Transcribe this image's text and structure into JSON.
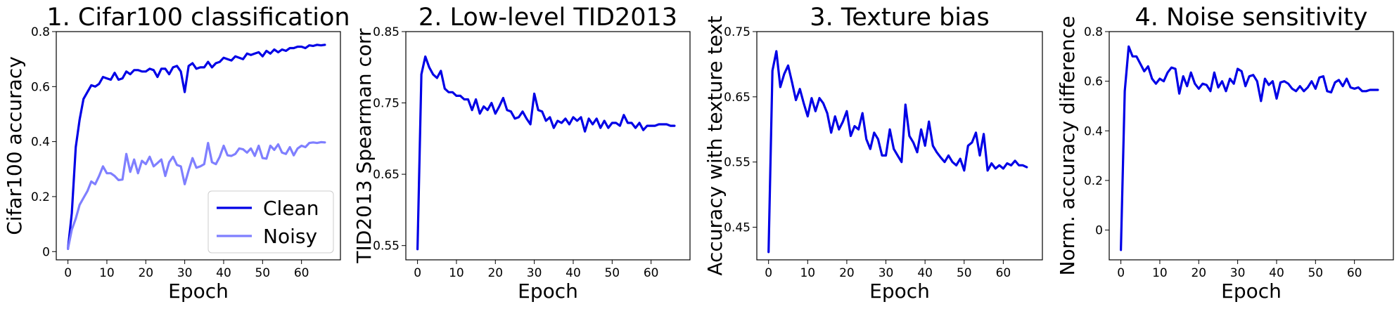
{
  "chart_data": [
    {
      "type": "line",
      "title": "1. Cifar100 classification",
      "xlabel": "Epoch",
      "ylabel": "Cifar100 accuracy",
      "xlim": [
        -3,
        70
      ],
      "ylim": [
        -0.03,
        0.8
      ],
      "xticks": [
        0,
        10,
        20,
        30,
        40,
        50,
        60
      ],
      "yticks": [
        0,
        0.2,
        0.4,
        0.6,
        0.8
      ],
      "ytick_labels": [
        "0",
        "0.2",
        "0.4",
        "0.6",
        "0.8"
      ],
      "legend": "bottom-right",
      "series": [
        {
          "name": "Clean",
          "color": "#0000e6",
          "x": [
            0,
            1,
            2,
            3,
            4,
            5,
            6,
            7,
            8,
            9,
            10,
            11,
            12,
            13,
            14,
            15,
            16,
            17,
            18,
            19,
            20,
            21,
            22,
            23,
            24,
            25,
            26,
            27,
            28,
            29,
            30,
            31,
            32,
            33,
            34,
            35,
            36,
            37,
            38,
            39,
            40,
            41,
            42,
            43,
            44,
            45,
            46,
            47,
            48,
            49,
            50,
            51,
            52,
            53,
            54,
            55,
            56,
            57,
            58,
            59,
            60,
            61,
            62,
            63,
            64,
            65,
            66
          ],
          "values": [
            0.01,
            0.14,
            0.38,
            0.48,
            0.555,
            0.58,
            0.605,
            0.6,
            0.61,
            0.635,
            0.63,
            0.625,
            0.65,
            0.625,
            0.63,
            0.655,
            0.645,
            0.66,
            0.66,
            0.655,
            0.655,
            0.665,
            0.66,
            0.635,
            0.665,
            0.665,
            0.645,
            0.67,
            0.675,
            0.655,
            0.58,
            0.675,
            0.685,
            0.665,
            0.67,
            0.67,
            0.69,
            0.67,
            0.685,
            0.69,
            0.705,
            0.7,
            0.695,
            0.71,
            0.705,
            0.7,
            0.72,
            0.715,
            0.72,
            0.725,
            0.71,
            0.73,
            0.72,
            0.735,
            0.725,
            0.735,
            0.73,
            0.74,
            0.74,
            0.745,
            0.745,
            0.74,
            0.75,
            0.748,
            0.752,
            0.75,
            0.752
          ]
        },
        {
          "name": "Noisy",
          "color": "#7f7fff",
          "x": [
            0,
            1,
            2,
            3,
            4,
            5,
            6,
            7,
            8,
            9,
            10,
            11,
            12,
            13,
            14,
            15,
            16,
            17,
            18,
            19,
            20,
            21,
            22,
            23,
            24,
            25,
            26,
            27,
            28,
            29,
            30,
            31,
            32,
            33,
            34,
            35,
            36,
            37,
            38,
            39,
            40,
            41,
            42,
            43,
            44,
            45,
            46,
            47,
            48,
            49,
            50,
            51,
            52,
            53,
            54,
            55,
            56,
            57,
            58,
            59,
            60,
            61,
            62,
            63,
            64,
            65,
            66
          ],
          "values": [
            0.01,
            0.08,
            0.12,
            0.17,
            0.195,
            0.22,
            0.255,
            0.245,
            0.275,
            0.31,
            0.285,
            0.285,
            0.275,
            0.26,
            0.262,
            0.355,
            0.29,
            0.335,
            0.285,
            0.33,
            0.318,
            0.345,
            0.31,
            0.322,
            0.335,
            0.275,
            0.325,
            0.345,
            0.315,
            0.31,
            0.245,
            0.295,
            0.34,
            0.305,
            0.31,
            0.318,
            0.395,
            0.325,
            0.318,
            0.345,
            0.385,
            0.35,
            0.348,
            0.355,
            0.375,
            0.372,
            0.36,
            0.375,
            0.348,
            0.385,
            0.34,
            0.338,
            0.385,
            0.37,
            0.39,
            0.36,
            0.355,
            0.38,
            0.35,
            0.375,
            0.385,
            0.38,
            0.395,
            0.397,
            0.395,
            0.398,
            0.397
          ]
        }
      ]
    },
    {
      "type": "line",
      "title": "2. Low-level TID2013",
      "xlabel": "Epoch",
      "ylabel": "TID2013 Spearman corr",
      "xlim": [
        -3,
        70
      ],
      "ylim": [
        0.53,
        0.85
      ],
      "xticks": [
        0,
        10,
        20,
        30,
        40,
        50,
        60
      ],
      "yticks": [
        0.55,
        0.65,
        0.75,
        0.85
      ],
      "ytick_labels": [
        "0.55",
        "0.65",
        "0.75",
        "0.85"
      ],
      "series": [
        {
          "color": "#0000e6",
          "x": [
            0,
            1,
            2,
            3,
            4,
            5,
            6,
            7,
            8,
            9,
            10,
            11,
            12,
            13,
            14,
            15,
            16,
            17,
            18,
            19,
            20,
            21,
            22,
            23,
            24,
            25,
            26,
            27,
            28,
            29,
            30,
            31,
            32,
            33,
            34,
            35,
            36,
            37,
            38,
            39,
            40,
            41,
            42,
            43,
            44,
            45,
            46,
            47,
            48,
            49,
            50,
            51,
            52,
            53,
            54,
            55,
            56,
            57,
            58,
            59,
            60,
            61,
            62,
            63,
            64,
            65,
            66
          ],
          "values": [
            0.545,
            0.79,
            0.815,
            0.8,
            0.79,
            0.785,
            0.795,
            0.77,
            0.765,
            0.765,
            0.76,
            0.76,
            0.755,
            0.755,
            0.74,
            0.755,
            0.735,
            0.745,
            0.74,
            0.75,
            0.735,
            0.745,
            0.757,
            0.74,
            0.738,
            0.728,
            0.73,
            0.738,
            0.728,
            0.72,
            0.763,
            0.74,
            0.738,
            0.725,
            0.73,
            0.715,
            0.725,
            0.722,
            0.728,
            0.72,
            0.73,
            0.725,
            0.73,
            0.71,
            0.728,
            0.72,
            0.728,
            0.715,
            0.725,
            0.715,
            0.722,
            0.722,
            0.718,
            0.733,
            0.722,
            0.722,
            0.715,
            0.722,
            0.712,
            0.718,
            0.718,
            0.718,
            0.72,
            0.72,
            0.72,
            0.718,
            0.718
          ]
        }
      ]
    },
    {
      "type": "line",
      "title": "3. Texture bias",
      "xlabel": "Epoch",
      "ylabel": "Accuracy with texture text",
      "xlim": [
        -3,
        70
      ],
      "ylim": [
        0.4,
        0.75
      ],
      "xticks": [
        0,
        10,
        20,
        30,
        40,
        50,
        60
      ],
      "yticks": [
        0.45,
        0.55,
        0.65,
        0.75
      ],
      "ytick_labels": [
        "0.45",
        "0.55",
        "0.65",
        "0.75"
      ],
      "series": [
        {
          "color": "#0000e6",
          "x": [
            0,
            1,
            2,
            3,
            4,
            5,
            6,
            7,
            8,
            9,
            10,
            11,
            12,
            13,
            14,
            15,
            16,
            17,
            18,
            19,
            20,
            21,
            22,
            23,
            24,
            25,
            26,
            27,
            28,
            29,
            30,
            31,
            32,
            33,
            34,
            35,
            36,
            37,
            38,
            39,
            40,
            41,
            42,
            43,
            44,
            45,
            46,
            47,
            48,
            49,
            50,
            51,
            52,
            53,
            54,
            55,
            56,
            57,
            58,
            59,
            60,
            61,
            62,
            63,
            64,
            65,
            66
          ],
          "values": [
            0.412,
            0.69,
            0.72,
            0.665,
            0.685,
            0.698,
            0.672,
            0.645,
            0.662,
            0.64,
            0.62,
            0.648,
            0.628,
            0.648,
            0.64,
            0.625,
            0.595,
            0.62,
            0.6,
            0.612,
            0.628,
            0.59,
            0.605,
            0.6,
            0.625,
            0.585,
            0.57,
            0.595,
            0.585,
            0.56,
            0.56,
            0.6,
            0.57,
            0.56,
            0.55,
            0.638,
            0.59,
            0.58,
            0.565,
            0.6,
            0.575,
            0.612,
            0.575,
            0.565,
            0.557,
            0.55,
            0.56,
            0.55,
            0.545,
            0.555,
            0.537,
            0.575,
            0.58,
            0.595,
            0.56,
            0.593,
            0.537,
            0.548,
            0.54,
            0.545,
            0.54,
            0.548,
            0.545,
            0.552,
            0.545,
            0.545,
            0.542
          ]
        }
      ]
    },
    {
      "type": "line",
      "title": "4. Noise sensitivity",
      "xlabel": "Epoch",
      "ylabel": "Norm. accuracy difference",
      "xlim": [
        -3,
        70
      ],
      "ylim": [
        -0.12,
        0.8
      ],
      "xticks": [
        0,
        10,
        20,
        30,
        40,
        50,
        60
      ],
      "yticks": [
        0,
        0.2,
        0.4,
        0.6,
        0.8
      ],
      "ytick_labels": [
        "0",
        "0.2",
        "0.4",
        "0.6",
        "0.8"
      ],
      "series": [
        {
          "color": "#0000e6",
          "x": [
            0,
            1,
            2,
            3,
            4,
            5,
            6,
            7,
            8,
            9,
            10,
            11,
            12,
            13,
            14,
            15,
            16,
            17,
            18,
            19,
            20,
            21,
            22,
            23,
            24,
            25,
            26,
            27,
            28,
            29,
            30,
            31,
            32,
            33,
            34,
            35,
            36,
            37,
            38,
            39,
            40,
            41,
            42,
            43,
            44,
            45,
            46,
            47,
            48,
            49,
            50,
            51,
            52,
            53,
            54,
            55,
            56,
            57,
            58,
            59,
            60,
            61,
            62,
            63,
            64,
            65,
            66
          ],
          "values": [
            -0.08,
            0.56,
            0.74,
            0.7,
            0.7,
            0.67,
            0.64,
            0.66,
            0.61,
            0.59,
            0.61,
            0.6,
            0.635,
            0.655,
            0.65,
            0.55,
            0.62,
            0.58,
            0.635,
            0.59,
            0.57,
            0.59,
            0.585,
            0.56,
            0.635,
            0.575,
            0.6,
            0.56,
            0.61,
            0.59,
            0.65,
            0.64,
            0.58,
            0.62,
            0.625,
            0.6,
            0.52,
            0.61,
            0.585,
            0.6,
            0.53,
            0.595,
            0.6,
            0.59,
            0.57,
            0.56,
            0.58,
            0.56,
            0.575,
            0.6,
            0.57,
            0.615,
            0.62,
            0.56,
            0.555,
            0.595,
            0.605,
            0.58,
            0.61,
            0.575,
            0.57,
            0.575,
            0.56,
            0.56,
            0.565,
            0.565,
            0.565
          ]
        }
      ]
    }
  ]
}
